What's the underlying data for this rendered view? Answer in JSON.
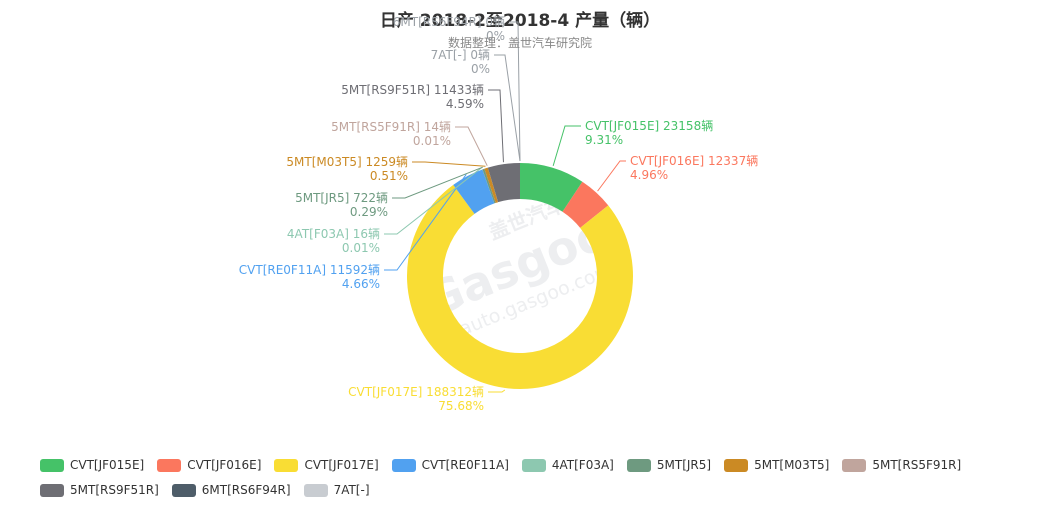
{
  "title": "日产 2018-2至2018-4 产量（辆）",
  "subtitle": "数据整理：盖世汽车研究院",
  "watermark": {
    "cn": "盖世汽车",
    "brand": "Gasgoo",
    "url": "auto.gasgoo.com"
  },
  "chart_data": {
    "type": "pie",
    "variant": "donut",
    "unit": "辆",
    "series": [
      {
        "name": "CVT[JF015E]",
        "value": 23158,
        "percent": "9.31%",
        "color": "#45c268"
      },
      {
        "name": "CVT[JF016E]",
        "value": 12337,
        "percent": "4.96%",
        "color": "#fb775e"
      },
      {
        "name": "CVT[JF017E]",
        "value": 188312,
        "percent": "75.68%",
        "color": "#f9dd34"
      },
      {
        "name": "CVT[RE0F11A]",
        "value": 11592,
        "percent": "4.66%",
        "color": "#51a1f0"
      },
      {
        "name": "4AT[F03A]",
        "value": 16,
        "percent": "0.01%",
        "color": "#8dc8b0"
      },
      {
        "name": "5MT[JR5]",
        "value": 722,
        "percent": "0.29%",
        "color": "#6e9a80"
      },
      {
        "name": "5MT[M03T5]",
        "value": 1259,
        "percent": "0.51%",
        "color": "#cb8a24"
      },
      {
        "name": "5MT[RS5F91R]",
        "value": 14,
        "percent": "0.01%",
        "color": "#c0a59d"
      },
      {
        "name": "5MT[RS9F51R]",
        "value": 11433,
        "percent": "4.59%",
        "color": "#6e6e74"
      },
      {
        "name": "6MT[RS6F94R]",
        "value": 0,
        "percent": "0%",
        "color": "#4e5d69"
      },
      {
        "name": "7AT[-]",
        "value": 0,
        "percent": "0%",
        "color": "#c8ccd1"
      }
    ]
  }
}
